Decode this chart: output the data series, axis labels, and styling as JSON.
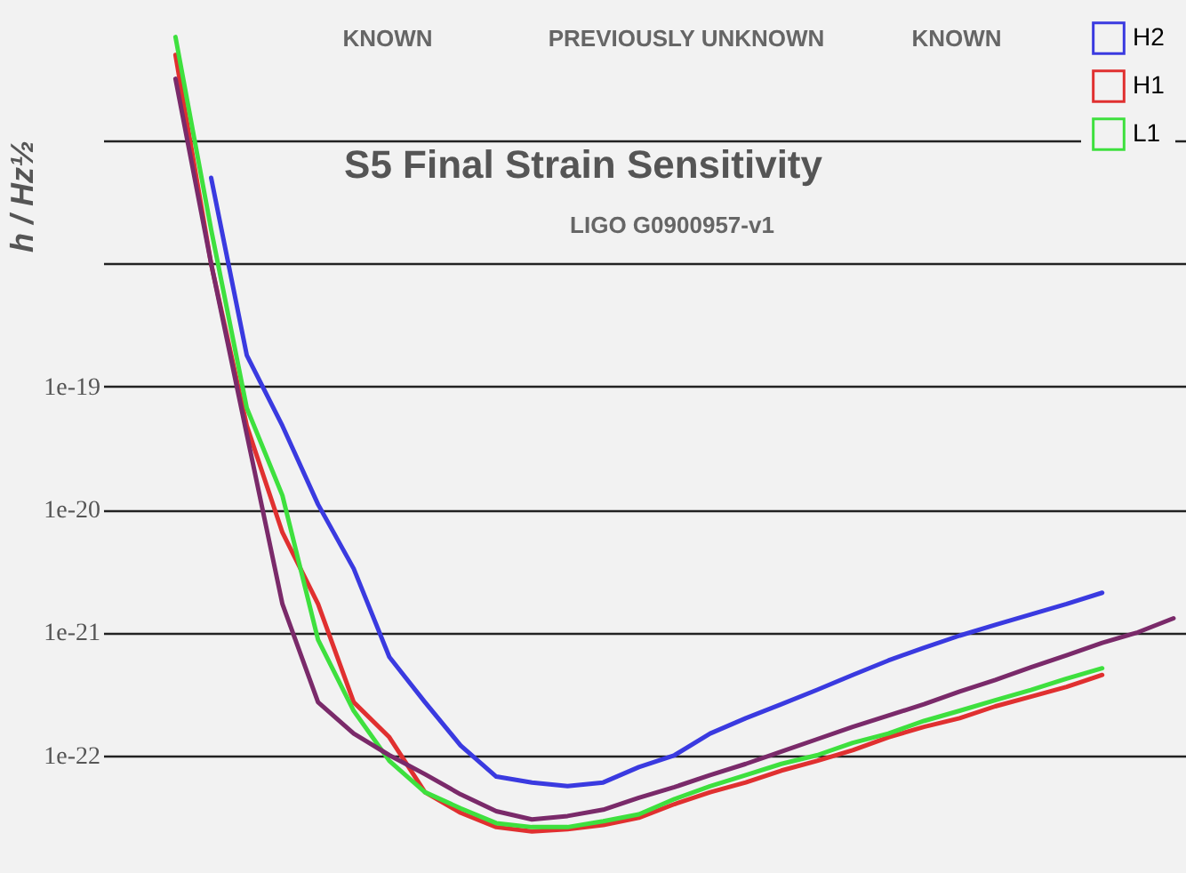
{
  "chart_data": {
    "type": "line",
    "title": "S5 Final Strain Sensitivity",
    "ylabel": "h / Hz½",
    "annotations": [
      "KNOWN",
      "PREVIOUSLY UNKNOWN",
      "KNOWN",
      "LIGO G0900957-v1"
    ],
    "categories": [
      null,
      null,
      null,
      null,
      null,
      null,
      null,
      null,
      null,
      null,
      null,
      null,
      null,
      null,
      null,
      null,
      null,
      null,
      null,
      null,
      null,
      null,
      null,
      null,
      null,
      null,
      null,
      null,
      null,
      null,
      null
    ],
    "series": [
      {
        "name": "H2",
        "color": "#3a3ae0",
        "values": [
          null,
          null,
          null,
          5e-18,
          1.8e-19,
          4.8e-20,
          1.1e-20,
          3.3e-21,
          6.3e-22,
          2.7e-22,
          1.2e-22,
          6.7e-23,
          6e-23,
          5.6e-23,
          6e-23,
          8e-23,
          1e-22,
          1.5e-22,
          2e-22,
          2.6e-22,
          3.4e-22,
          4.5e-22,
          5.9e-22,
          7.5e-22,
          9.4e-22,
          1.15e-21,
          1.4e-21,
          1.7e-21,
          2.1e-21,
          null,
          null
        ]
      },
      {
        "name": "H1",
        "color": "#e03030",
        "values": [
          null,
          null,
          5e-17,
          1e-18,
          4.8e-20,
          6.5e-21,
          1.7e-21,
          2.7e-22,
          1.4e-22,
          5e-23,
          3.4e-23,
          2.6e-23,
          2.4e-23,
          2.5e-23,
          2.7e-23,
          3.1e-23,
          4e-23,
          5e-23,
          6e-23,
          7.5e-23,
          9e-23,
          1.1e-22,
          1.4e-22,
          1.7e-22,
          2e-22,
          2.5e-22,
          3e-22,
          3.6e-22,
          4.5e-22,
          null,
          null
        ]
      },
      {
        "name": "L1",
        "color": "#3ee03e",
        "values": [
          null,
          null,
          7e-17,
          1.9e-18,
          6.7e-20,
          1.3e-20,
          8.7e-22,
          2.3e-22,
          9e-23,
          5e-23,
          3.7e-23,
          2.8e-23,
          2.6e-23,
          2.6e-23,
          2.9e-23,
          3.3e-23,
          4.4e-23,
          5.6e-23,
          6.9e-23,
          8.5e-23,
          1e-22,
          1.26e-22,
          1.5e-22,
          1.9e-22,
          2.3e-22,
          2.8e-22,
          3.4e-22,
          4.2e-22,
          5.1e-22,
          null,
          null
        ]
      },
      {
        "color": "#7a2a6a",
        "values": [
          null,
          null,
          3.2e-17,
          1e-18,
          4.1e-20,
          1.7e-21,
          2.7e-22,
          1.5e-22,
          1e-22,
          7e-23,
          4.8e-23,
          3.5e-23,
          3e-23,
          3.2e-23,
          3.6e-23,
          4.5e-23,
          5.5e-23,
          6.9e-23,
          8.5e-23,
          1.07e-22,
          1.35e-22,
          1.7e-22,
          2.1e-22,
          2.6e-22,
          3.3e-22,
          4.1e-22,
          5.2e-22,
          6.5e-22,
          8.2e-22,
          1e-21,
          1.3e-21
        ]
      }
    ],
    "ylim": [
      1.1e-23,
      1.4e-16
    ],
    "yticks": [
      {
        "value": 1e-22,
        "label": "1e-22"
      },
      {
        "value": 1e-21,
        "label": "1e-21"
      },
      {
        "value": 1e-20,
        "label": "1e-20"
      },
      {
        "value": 1e-19,
        "label": "1e-19"
      },
      {
        "value": 1e-18,
        "label": null
      },
      {
        "value": 1e-17,
        "label": null
      }
    ],
    "log": true,
    "grid": "y",
    "legend": "top right",
    "tick_labels": "y",
    "line_style": "solid",
    "marker": "none"
  }
}
